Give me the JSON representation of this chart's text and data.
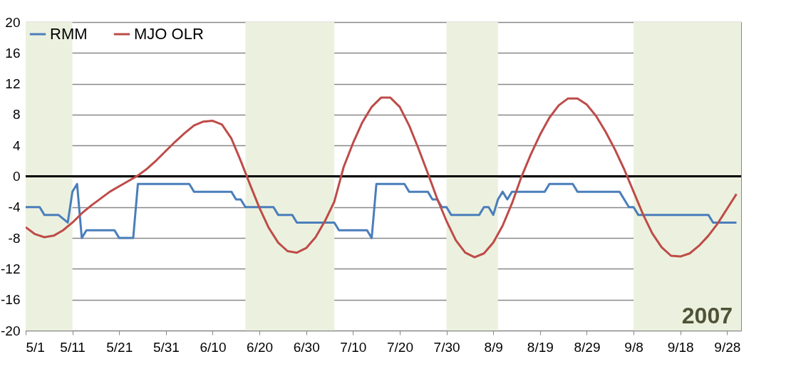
{
  "chart_data": {
    "type": "line",
    "legend": "top left",
    "grid": "y",
    "ylim": [
      -20,
      20
    ],
    "yticks": [
      -20,
      -16,
      -12,
      -8,
      -4,
      0,
      4,
      8,
      12,
      16,
      20
    ],
    "xlim": [
      "2007-05-01",
      "2007-10-01"
    ],
    "xticks": [
      {
        "value": "2007-05-01",
        "label": "5/1"
      },
      {
        "value": "2007-05-11",
        "label": "5/11"
      },
      {
        "value": "2007-05-21",
        "label": "5/21"
      },
      {
        "value": "2007-05-31",
        "label": "5/31"
      },
      {
        "value": "2007-06-10",
        "label": "6/10"
      },
      {
        "value": "2007-06-20",
        "label": "6/20"
      },
      {
        "value": "2007-06-30",
        "label": "6/30"
      },
      {
        "value": "2007-07-10",
        "label": "7/10"
      },
      {
        "value": "2007-07-20",
        "label": "7/20"
      },
      {
        "value": "2007-07-30",
        "label": "7/30"
      },
      {
        "value": "2007-08-09",
        "label": "8/9"
      },
      {
        "value": "2007-08-19",
        "label": "8/19"
      },
      {
        "value": "2007-08-29",
        "label": "8/29"
      },
      {
        "value": "2007-09-08",
        "label": "9/8"
      },
      {
        "value": "2007-09-18",
        "label": "9/18"
      },
      {
        "value": "2007-09-28",
        "label": "9/28"
      }
    ],
    "ref_lines": [
      {
        "axis": "y",
        "value": 0,
        "color": "#000000"
      }
    ],
    "bands": [
      {
        "axis": "x",
        "from": "2007-05-01",
        "to": "2007-05-11",
        "color": "#ebf1de"
      },
      {
        "axis": "x",
        "from": "2007-06-17",
        "to": "2007-07-06",
        "color": "#ebf1de"
      },
      {
        "axis": "x",
        "from": "2007-07-30",
        "to": "2007-08-10",
        "color": "#ebf1de"
      },
      {
        "axis": "x",
        "from": "2007-09-08",
        "to": "2007-10-01",
        "color": "#ebf1de"
      }
    ],
    "annotations": [
      "2007"
    ],
    "series": [
      {
        "name": "RMM",
        "color": "#4a7ebb",
        "x": [
          "2007-05-01",
          "2007-05-04",
          "2007-05-05",
          "2007-05-08",
          "2007-05-10",
          "2007-05-11",
          "2007-05-12",
          "2007-05-13",
          "2007-05-14",
          "2007-05-20",
          "2007-05-21",
          "2007-05-24",
          "2007-05-25",
          "2007-06-05",
          "2007-06-06",
          "2007-06-14",
          "2007-06-15",
          "2007-06-16",
          "2007-06-17",
          "2007-06-23",
          "2007-06-24",
          "2007-06-27",
          "2007-06-28",
          "2007-07-06",
          "2007-07-07",
          "2007-07-13",
          "2007-07-14",
          "2007-07-15",
          "2007-07-21",
          "2007-07-22",
          "2007-07-26",
          "2007-07-27",
          "2007-07-28",
          "2007-07-29",
          "2007-07-30",
          "2007-07-31",
          "2007-08-06",
          "2007-08-07",
          "2007-08-08",
          "2007-08-09",
          "2007-08-10",
          "2007-08-11",
          "2007-08-12",
          "2007-08-13",
          "2007-08-20",
          "2007-08-21",
          "2007-08-26",
          "2007-08-27",
          "2007-09-05",
          "2007-09-07",
          "2007-09-08",
          "2007-09-09",
          "2007-09-24",
          "2007-09-25",
          "2007-09-30"
        ],
        "values": [
          -4,
          -4,
          -5,
          -5,
          -6,
          -2,
          -1,
          -8,
          -7,
          -7,
          -8,
          -8,
          -1,
          -1,
          -2,
          -2,
          -3,
          -3,
          -4,
          -4,
          -5,
          -5,
          -6,
          -6,
          -7,
          -7,
          -8,
          -1,
          -1,
          -2,
          -2,
          -3,
          -3,
          -4,
          -4,
          -5,
          -5,
          -4,
          -4,
          -5,
          -3,
          -2,
          -3,
          -2,
          -2,
          -1,
          -1,
          -2,
          -2,
          -4,
          -4,
          -5,
          -5,
          -6,
          -6
        ]
      },
      {
        "name": "MJO OLR",
        "color": "#be4b48",
        "x": [
          "2007-05-01",
          "2007-05-03",
          "2007-05-05",
          "2007-05-07",
          "2007-05-09",
          "2007-05-11",
          "2007-05-13",
          "2007-05-15",
          "2007-05-17",
          "2007-05-19",
          "2007-05-21",
          "2007-05-23",
          "2007-05-25",
          "2007-05-27",
          "2007-05-29",
          "2007-05-31",
          "2007-06-02",
          "2007-06-04",
          "2007-06-06",
          "2007-06-08",
          "2007-06-10",
          "2007-06-12",
          "2007-06-14",
          "2007-06-16",
          "2007-06-18",
          "2007-06-20",
          "2007-06-22",
          "2007-06-24",
          "2007-06-26",
          "2007-06-28",
          "2007-06-30",
          "2007-07-02",
          "2007-07-04",
          "2007-07-06",
          "2007-07-08",
          "2007-07-10",
          "2007-07-12",
          "2007-07-14",
          "2007-07-16",
          "2007-07-18",
          "2007-07-20",
          "2007-07-22",
          "2007-07-24",
          "2007-07-26",
          "2007-07-28",
          "2007-07-30",
          "2007-08-01",
          "2007-08-03",
          "2007-08-05",
          "2007-08-07",
          "2007-08-09",
          "2007-08-11",
          "2007-08-13",
          "2007-08-15",
          "2007-08-17",
          "2007-08-19",
          "2007-08-21",
          "2007-08-23",
          "2007-08-25",
          "2007-08-27",
          "2007-08-29",
          "2007-08-31",
          "2007-09-02",
          "2007-09-04",
          "2007-09-06",
          "2007-09-08",
          "2007-09-10",
          "2007-09-12",
          "2007-09-14",
          "2007-09-16",
          "2007-09-18",
          "2007-09-20",
          "2007-09-22",
          "2007-09-24",
          "2007-09-26",
          "2007-09-28",
          "2007-09-30"
        ],
        "values": [
          -6.6,
          -7.5,
          -7.9,
          -7.7,
          -7.0,
          -6.0,
          -4.8,
          -3.8,
          -2.9,
          -2.0,
          -1.3,
          -0.6,
          0.1,
          1.0,
          2.1,
          3.3,
          4.5,
          5.6,
          6.6,
          7.1,
          7.2,
          6.7,
          4.9,
          2.0,
          -1.1,
          -4.1,
          -6.7,
          -8.6,
          -9.7,
          -9.9,
          -9.3,
          -7.9,
          -5.8,
          -3.3,
          1.2,
          4.3,
          7.0,
          9.0,
          10.2,
          10.2,
          9.0,
          6.6,
          3.6,
          0.4,
          -2.9,
          -5.8,
          -8.3,
          -9.9,
          -10.5,
          -10.0,
          -8.6,
          -6.4,
          -3.5,
          -0.1,
          2.8,
          5.4,
          7.6,
          9.2,
          10.1,
          10.1,
          9.3,
          7.8,
          5.8,
          3.5,
          0.9,
          -2.0,
          -4.9,
          -7.4,
          -9.2,
          -10.3,
          -10.4,
          -10.0,
          -9.0,
          -7.7,
          -6.1,
          -4.2,
          -2.3
        ]
      }
    ]
  }
}
